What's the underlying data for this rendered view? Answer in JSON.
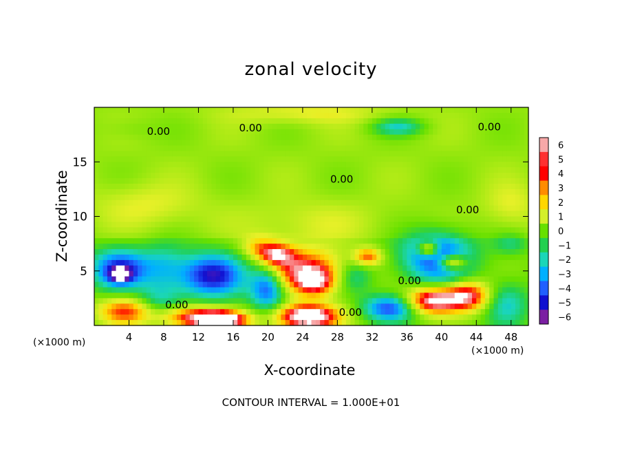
{
  "chart_data": {
    "type": "heatmap",
    "title": "zonal velocity",
    "xlabel": "X-coordinate",
    "ylabel": "Z-coordinate",
    "x_unit": "(×1000 m)",
    "x_unit_right": "(×1000 m)",
    "footnote": "CONTOUR INTERVAL = 1.000E+01",
    "xlim": [
      0,
      50
    ],
    "ylim": [
      0,
      20
    ],
    "x_ticks": [
      4,
      8,
      12,
      16,
      20,
      24,
      28,
      32,
      36,
      40,
      44,
      48
    ],
    "y_ticks": [
      5,
      10,
      15
    ],
    "colorbar": {
      "ticks": [
        6,
        5,
        4,
        3,
        2,
        1,
        0,
        -1,
        -2,
        -3,
        -4,
        -5,
        -6
      ],
      "range": [
        -6,
        6
      ],
      "colors": [
        "#f7a8a8",
        "#ff3030",
        "#ff0000",
        "#ff8c00",
        "#ffd700",
        "#d4ef2a",
        "#66e000",
        "#22d050",
        "#1bd6b8",
        "#00b0ff",
        "#2060ff",
        "#1010d0",
        "#7b1fa2"
      ]
    },
    "contour_labels": [
      {
        "text": "0.00",
        "x": 7.4,
        "y": 17.8
      },
      {
        "text": "0.00",
        "x": 18.0,
        "y": 18.1
      },
      {
        "text": "0.00",
        "x": 45.5,
        "y": 18.2
      },
      {
        "text": "0.00",
        "x": 28.5,
        "y": 13.4
      },
      {
        "text": "0.00",
        "x": 43.0,
        "y": 10.6
      },
      {
        "text": "0.00",
        "x": 36.3,
        "y": 4.1
      },
      {
        "text": "0.00",
        "x": 9.5,
        "y": 1.9
      },
      {
        "text": "0.00",
        "x": 29.5,
        "y": 1.2
      }
    ],
    "blobs": [
      {
        "x": 24.5,
        "y": 19.5,
        "rx": 9,
        "ry": 1.0,
        "v": 1.4
      },
      {
        "x": 6,
        "y": 11,
        "rx": 6,
        "ry": 2.0,
        "v": 1.3
      },
      {
        "x": 25,
        "y": 9.5,
        "rx": 8,
        "ry": 2.0,
        "v": 1.0
      },
      {
        "x": 35,
        "y": 18.2,
        "rx": 3.0,
        "ry": 0.8,
        "v": -2.6
      },
      {
        "x": 4,
        "y": 18,
        "rx": 3,
        "ry": 1.0,
        "v": -0.5
      },
      {
        "x": 48,
        "y": 11,
        "rx": 3,
        "ry": 2.0,
        "v": 1.3
      },
      {
        "x": 3,
        "y": 5.2,
        "rx": 3.4,
        "ry": 1.8,
        "v": -5.0
      },
      {
        "x": 3,
        "y": 4.6,
        "rx": 1.3,
        "ry": 0.7,
        "v": -3.5
      },
      {
        "x": 7.5,
        "y": 2.3,
        "rx": 2.5,
        "ry": 1.7,
        "v": -2.0
      },
      {
        "x": 13.5,
        "y": 4.6,
        "rx": 4.0,
        "ry": 2.0,
        "v": -5.5
      },
      {
        "x": 11,
        "y": 0.8,
        "rx": 4.0,
        "ry": 1.0,
        "v": 4.2
      },
      {
        "x": 14.5,
        "y": 0.5,
        "rx": 3.0,
        "ry": 0.8,
        "v": 8.0
      },
      {
        "x": 3.5,
        "y": 1.3,
        "rx": 3.0,
        "ry": 1.2,
        "v": 4.2
      },
      {
        "x": 20,
        "y": 3.5,
        "rx": 2.0,
        "ry": 2.0,
        "v": -5.0
      },
      {
        "x": 24,
        "y": 5,
        "rx": 4.5,
        "ry": 2.0,
        "v": 5.2
      },
      {
        "x": 25.5,
        "y": 4.0,
        "rx": 2.0,
        "ry": 1.2,
        "v": 4.0
      },
      {
        "x": 24.5,
        "y": 0.8,
        "rx": 3.5,
        "ry": 1.1,
        "v": 8.0
      },
      {
        "x": 21,
        "y": 6.5,
        "rx": 2.0,
        "ry": 1.0,
        "v": 4.5
      },
      {
        "x": 31.5,
        "y": 6.3,
        "rx": 1.6,
        "ry": 0.8,
        "v": 4.0
      },
      {
        "x": 30,
        "y": 4.5,
        "rx": 2.0,
        "ry": 1.5,
        "v": -2.0
      },
      {
        "x": 34,
        "y": 1.6,
        "rx": 3.0,
        "ry": 1.2,
        "v": -4.5
      },
      {
        "x": 39.5,
        "y": 6.3,
        "rx": 4.0,
        "ry": 2.4,
        "v": -5.0
      },
      {
        "x": 38.5,
        "y": 7.0,
        "rx": 1.2,
        "ry": 0.7,
        "v": 5.0
      },
      {
        "x": 41.2,
        "y": 5.8,
        "rx": 1.6,
        "ry": 0.7,
        "v": 5.0
      },
      {
        "x": 39,
        "y": 2.3,
        "rx": 3.0,
        "ry": 1.2,
        "v": 6.5
      },
      {
        "x": 43,
        "y": 2.7,
        "rx": 2.5,
        "ry": 1.3,
        "v": 5.5
      },
      {
        "x": 47.5,
        "y": 2.0,
        "rx": 2.5,
        "ry": 2.0,
        "v": -2.5
      },
      {
        "x": 48,
        "y": 7.5,
        "rx": 2.0,
        "ry": 1.0,
        "v": -1.5
      },
      {
        "x": 8,
        "y": 5.5,
        "rx": 2.5,
        "ry": 2.0,
        "v": -2.0
      },
      {
        "x": 19,
        "y": 7.2,
        "rx": 2.0,
        "ry": 1.0,
        "v": 2.5
      }
    ]
  }
}
